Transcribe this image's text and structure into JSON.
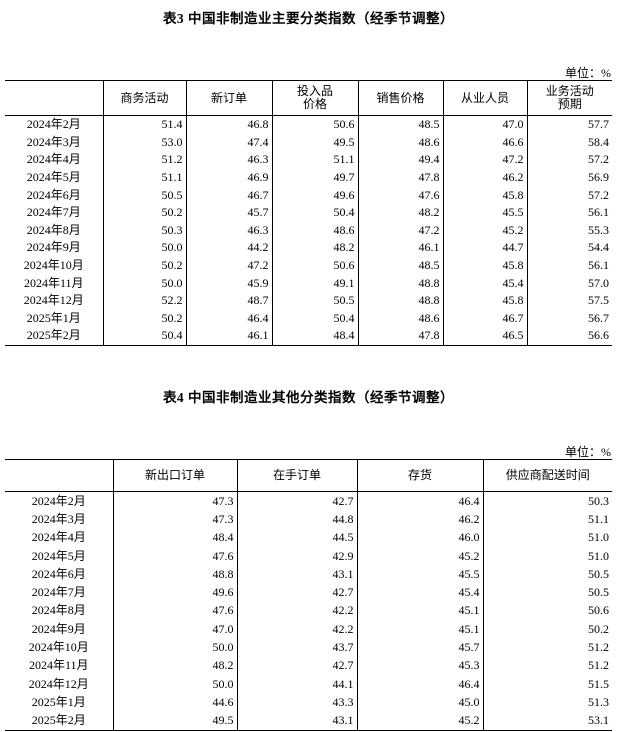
{
  "table3": {
    "title": "表3 中国非制造业主要分类指数（经季节调整）",
    "unit": "单位：%",
    "columns": [
      "",
      "商务活动",
      "新订单",
      "投入品价格",
      "销售价格",
      "从业人员",
      "业务活动预期"
    ],
    "rows": [
      [
        "2024年2月",
        "51.4",
        "46.8",
        "50.6",
        "48.5",
        "47.0",
        "57.7"
      ],
      [
        "2024年3月",
        "53.0",
        "47.4",
        "49.5",
        "48.6",
        "46.6",
        "58.4"
      ],
      [
        "2024年4月",
        "51.2",
        "46.3",
        "51.1",
        "49.4",
        "47.2",
        "57.2"
      ],
      [
        "2024年5月",
        "51.1",
        "46.9",
        "49.7",
        "47.8",
        "46.2",
        "56.9"
      ],
      [
        "2024年6月",
        "50.5",
        "46.7",
        "49.6",
        "47.6",
        "45.8",
        "57.2"
      ],
      [
        "2024年7月",
        "50.2",
        "45.7",
        "50.4",
        "48.2",
        "45.5",
        "56.1"
      ],
      [
        "2024年8月",
        "50.3",
        "46.3",
        "48.6",
        "47.2",
        "45.2",
        "55.3"
      ],
      [
        "2024年9月",
        "50.0",
        "44.2",
        "48.2",
        "46.1",
        "44.7",
        "54.4"
      ],
      [
        "2024年10月",
        "50.2",
        "47.2",
        "50.6",
        "48.5",
        "45.8",
        "56.1"
      ],
      [
        "2024年11月",
        "50.0",
        "45.9",
        "49.1",
        "48.8",
        "45.4",
        "57.0"
      ],
      [
        "2024年12月",
        "52.2",
        "48.7",
        "50.5",
        "48.8",
        "45.8",
        "57.5"
      ],
      [
        "2025年1月",
        "50.2",
        "46.4",
        "50.4",
        "48.6",
        "46.7",
        "56.7"
      ],
      [
        "2025年2月",
        "50.4",
        "46.1",
        "48.4",
        "47.8",
        "46.5",
        "56.6"
      ]
    ]
  },
  "table4": {
    "title": "表4 中国非制造业其他分类指数（经季节调整）",
    "unit": "单位：%",
    "columns": [
      "",
      "新出口订单",
      "在手订单",
      "存货",
      "供应商配送时间"
    ],
    "rows": [
      [
        "2024年2月",
        "47.3",
        "42.7",
        "46.4",
        "50.3"
      ],
      [
        "2024年3月",
        "47.3",
        "44.8",
        "46.2",
        "51.1"
      ],
      [
        "2024年4月",
        "48.4",
        "44.5",
        "46.0",
        "51.0"
      ],
      [
        "2024年5月",
        "47.6",
        "42.9",
        "45.2",
        "51.0"
      ],
      [
        "2024年6月",
        "48.8",
        "43.1",
        "45.5",
        "50.5"
      ],
      [
        "2024年7月",
        "49.6",
        "42.7",
        "45.4",
        "50.5"
      ],
      [
        "2024年8月",
        "47.6",
        "42.2",
        "45.1",
        "50.6"
      ],
      [
        "2024年9月",
        "47.0",
        "42.2",
        "45.1",
        "50.2"
      ],
      [
        "2024年10月",
        "50.0",
        "43.7",
        "45.7",
        "51.2"
      ],
      [
        "2024年11月",
        "48.2",
        "42.7",
        "45.3",
        "51.2"
      ],
      [
        "2024年12月",
        "50.0",
        "44.1",
        "46.4",
        "51.5"
      ],
      [
        "2025年1月",
        "44.6",
        "43.3",
        "45.0",
        "51.3"
      ],
      [
        "2025年2月",
        "49.5",
        "43.1",
        "45.2",
        "53.1"
      ]
    ]
  }
}
